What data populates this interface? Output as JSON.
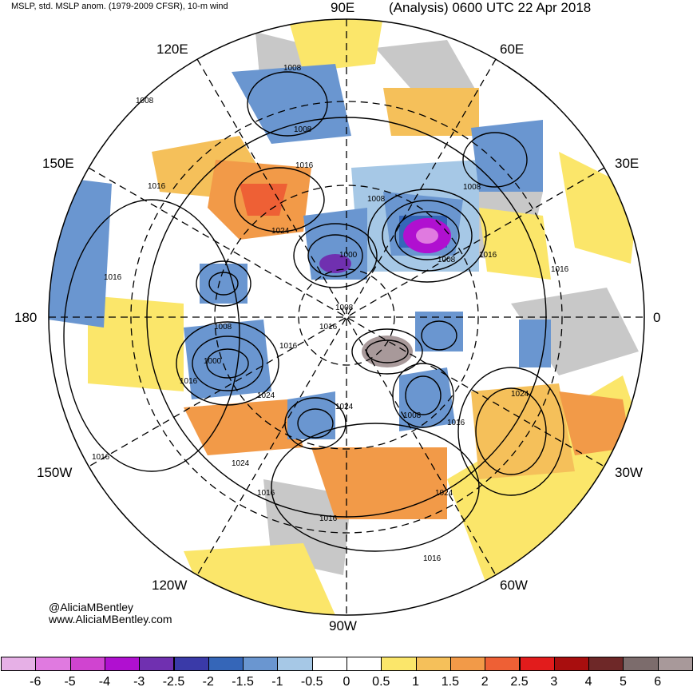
{
  "header": {
    "left": "MSLP, std. MSLP anom. (1979-2009 CFSR), 10-m wind",
    "right": "(Analysis) 0600 UTC 22 Apr 2018"
  },
  "longitude_labels": {
    "e90": "90E",
    "e120": "120E",
    "e60": "60E",
    "e150": "150E",
    "e30": "30E",
    "d180": "180",
    "d0": "0",
    "w150": "150W",
    "w30": "30W",
    "w120": "120W",
    "w60": "60W",
    "w90": "90W"
  },
  "credit": {
    "handle": "@AliciaMBentley",
    "site": "www.AliciaMBentley.com"
  },
  "colorbar": {
    "colors": [
      "#e6b0e6",
      "#e07ae0",
      "#d044d0",
      "#b010d0",
      "#7030b0",
      "#3a3aa8",
      "#3566b8",
      "#6a96d0",
      "#a6c8e6",
      "#ffffff",
      "#ffffff",
      "#fbe66a",
      "#f5c05a",
      "#f29a48",
      "#ee6035",
      "#e21c1c",
      "#a80e0e",
      "#6e2828",
      "#7c6c6c",
      "#a8999a"
    ],
    "ticks": [
      "-6",
      "-5",
      "-4",
      "-3",
      "-2.5",
      "-2",
      "-1.5",
      "-1",
      "-0.5",
      "0",
      "0.5",
      "1",
      "1.5",
      "2",
      "2.5",
      "3",
      "4",
      "5",
      "6"
    ]
  },
  "contour_labels": [
    "1008",
    "1008",
    "1008",
    "1016",
    "1016",
    "1024",
    "1016",
    "1008",
    "1000",
    "1008",
    "1016",
    "1016",
    "1024",
    "1000",
    "1008",
    "1016",
    "1008",
    "1016",
    "1024",
    "1016",
    "1024",
    "1016",
    "1024",
    "1024",
    "1016",
    "1016",
    "1008",
    "1016",
    "1016",
    "1008"
  ]
}
